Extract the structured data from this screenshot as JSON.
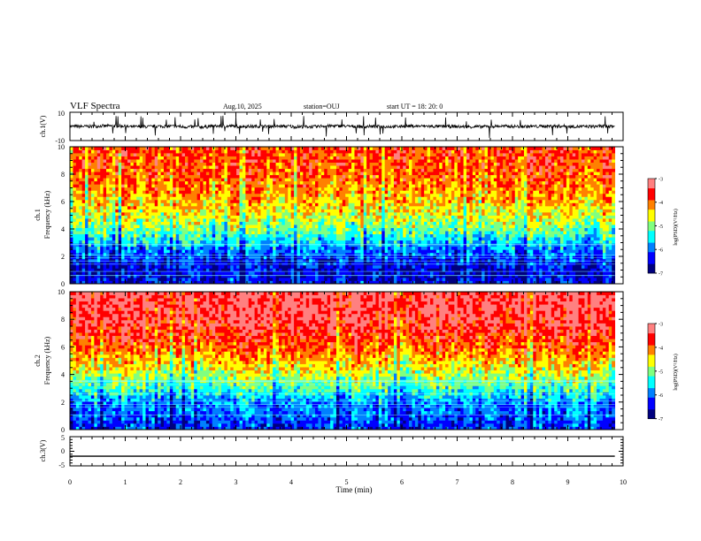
{
  "header": {
    "title": "VLF Spectra",
    "date": "Aug.10, 2025",
    "station": "station=OUJ",
    "start": "start UT =  18: 20: 0"
  },
  "colors": {
    "jet": [
      "#00007f",
      "#0000ff",
      "#0080ff",
      "#00ffff",
      "#80ff80",
      "#ffff00",
      "#ff8000",
      "#ff0000",
      "#ff8080",
      "#ffffff"
    ]
  },
  "chart_data": [
    {
      "type": "line",
      "panel": "ch1-waveform",
      "ylabel": "ch.1(V)",
      "ylim": [
        -10,
        10
      ],
      "ytick_labels": [
        "10",
        "-10"
      ],
      "x": [
        0,
        0.5,
        1,
        1.5,
        2,
        2.5,
        3,
        3.5,
        4,
        4.5,
        5,
        5.5,
        6,
        6.5,
        7,
        7.5,
        8,
        8.5,
        9,
        9.5,
        9.85
      ],
      "values": [
        0,
        0.3,
        -0.2,
        0.1,
        -0.3,
        0.2,
        0,
        0.1,
        -0.2,
        0.3,
        0,
        -0.1,
        0.2,
        0,
        -0.2,
        0.1,
        0,
        0.2,
        -0.1,
        0.1,
        0
      ]
    },
    {
      "type": "heatmap",
      "panel": "ch1-spectrogram",
      "ylabel": "Frequency (kHz)",
      "channel_label": "ch.1",
      "ylim": [
        0,
        10
      ],
      "ytick_labels": [
        "0",
        "2",
        "4",
        "6",
        "8",
        "10"
      ],
      "colorbar": {
        "label": "log(PSD)(V²/Hz)",
        "range": [
          -7,
          -3
        ],
        "tick_labels": [
          "-3",
          "-4",
          "-5",
          "-6",
          "-7"
        ]
      },
      "mean_level_by_freq_khz": {
        "freq": [
          0,
          1,
          2,
          3,
          4,
          5,
          6,
          7,
          8,
          9,
          10
        ],
        "log_psd": [
          -6.3,
          -6.5,
          -6.1,
          -5.6,
          -5.0,
          -4.6,
          -4.3,
          -4.1,
          -3.9,
          -3.8,
          -3.8
        ]
      }
    },
    {
      "type": "heatmap",
      "panel": "ch2-spectrogram",
      "ylabel": "Frequency (kHz)",
      "channel_label": "ch.2",
      "ylim": [
        0,
        10
      ],
      "ytick_labels": [
        "0",
        "2",
        "4",
        "6",
        "8",
        "10"
      ],
      "colorbar": {
        "label": "log(PSD)(V²/Hz)",
        "range": [
          -7,
          -3
        ],
        "tick_labels": [
          "-3",
          "-4",
          "-5",
          "-6",
          "-7"
        ]
      },
      "mean_level_by_freq_khz": {
        "freq": [
          0,
          1,
          2,
          3,
          4,
          5,
          6,
          7,
          8,
          9,
          10
        ],
        "log_psd": [
          -6.2,
          -6.0,
          -5.8,
          -5.2,
          -4.7,
          -4.3,
          -3.9,
          -3.6,
          -3.4,
          -3.3,
          -3.3
        ]
      }
    },
    {
      "type": "line",
      "panel": "ch3-waveform",
      "ylabel": "ch.3(V)",
      "ylim": [
        -5,
        5
      ],
      "ytick_labels": [
        "5",
        "0",
        "-5"
      ],
      "x": [
        0,
        9.85
      ],
      "values": [
        -1.7,
        -1.7
      ]
    }
  ],
  "xaxis": {
    "label": "Time (min)",
    "range": [
      0,
      10
    ],
    "tick_labels": [
      "0",
      "1",
      "2",
      "3",
      "4",
      "5",
      "6",
      "7",
      "8",
      "9",
      "10"
    ]
  }
}
